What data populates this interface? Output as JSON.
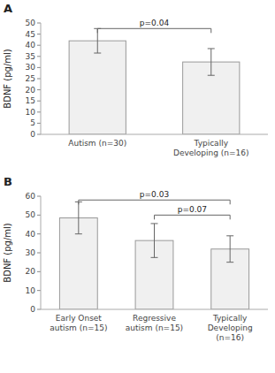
{
  "chart_data": [
    {
      "type": "bar",
      "title": "A",
      "categories": [
        "Autism (n=30)",
        "Typically\nDeveloping (n=16)"
      ],
      "values": [
        42.0,
        32.5
      ],
      "errors": [
        5.5,
        6.0
      ],
      "color": "#f0f0f0",
      "ylim": [
        0,
        50
      ],
      "yticks": [
        0,
        5,
        10,
        15,
        20,
        25,
        30,
        35,
        40,
        45,
        50
      ],
      "ylabel": "BDNF (pg/ml)",
      "grid": false,
      "annotations": [
        {
          "text": "p=0.04",
          "x1": 0,
          "x2": 1,
          "y": 47.5
        }
      ]
    },
    {
      "type": "bar",
      "title": "B",
      "categories": [
        "Early Onset\nautism (n=15)",
        "Regressive\nautism (n=15)",
        "Typically\nDeveloping\n(n=16)"
      ],
      "values": [
        48.5,
        36.5,
        32.0
      ],
      "errors": [
        8.5,
        9.0,
        7.0
      ],
      "color": "#f0f0f0",
      "ylim": [
        0,
        60
      ],
      "yticks": [
        0,
        10,
        20,
        30,
        40,
        50,
        60
      ],
      "ylabel": "BDNF (pg/ml)",
      "grid": false,
      "annotations": [
        {
          "text": "p=0.03",
          "x1": 0,
          "x2": 2,
          "y": 58.0
        },
        {
          "text": "p=0.07",
          "x1": 1,
          "x2": 2,
          "y": 50.0
        }
      ]
    }
  ]
}
